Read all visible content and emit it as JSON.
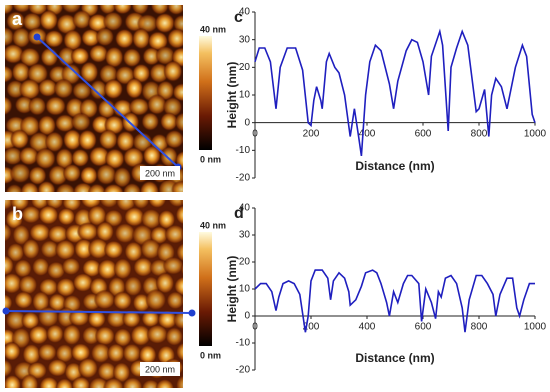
{
  "images": [
    {
      "label": "a",
      "scale_bar": "200 nm",
      "colorbar_max": "40 nm",
      "colorbar_min": "0 nm"
    },
    {
      "label": "b",
      "scale_bar": "200 nm",
      "colorbar_max": "40 nm",
      "colorbar_min": "0 nm"
    }
  ],
  "chart_data": [
    {
      "type": "line",
      "panel": "c",
      "x_label": "Distance (nm)",
      "y_label": "Height (nm)",
      "xlim": [
        0,
        1000
      ],
      "xticks": [
        0,
        200,
        400,
        600,
        800,
        1000
      ],
      "ylim": [
        -20,
        40
      ],
      "yticks": [
        -20,
        -10,
        0,
        10,
        20,
        30,
        40
      ],
      "series": [
        {
          "color": "#1f1fbf",
          "x": [
            0,
            15,
            35,
            55,
            75,
            90,
            115,
            145,
            170,
            190,
            200,
            210,
            220,
            235,
            240,
            255,
            265,
            285,
            300,
            320,
            340,
            355,
            370,
            380,
            395,
            410,
            430,
            450,
            480,
            495,
            510,
            540,
            560,
            580,
            600,
            620,
            630,
            660,
            670,
            690,
            700,
            720,
            740,
            760,
            790,
            800,
            820,
            835,
            845,
            860,
            880,
            900,
            910,
            930,
            955,
            970,
            990,
            1000
          ],
          "values": [
            22,
            27,
            27,
            22,
            5,
            20,
            27,
            27,
            19,
            0,
            -1,
            8,
            13,
            8,
            5,
            22,
            25,
            20,
            18,
            10,
            -5,
            5,
            -5,
            -12,
            10,
            22,
            28,
            26,
            14,
            5,
            15,
            26,
            30,
            29,
            22,
            10,
            24,
            33,
            28,
            -3,
            20,
            27,
            33,
            28,
            4,
            5,
            12,
            -5,
            10,
            16,
            13,
            5,
            10,
            20,
            28,
            24,
            3,
            0
          ]
        }
      ]
    },
    {
      "type": "line",
      "panel": "d",
      "x_label": "Distance (nm)",
      "y_label": "Height (nm)",
      "xlim": [
        0,
        1000
      ],
      "xticks": [
        0,
        200,
        400,
        600,
        800,
        1000
      ],
      "ylim": [
        -20,
        40
      ],
      "yticks": [
        -20,
        -10,
        0,
        10,
        20,
        30,
        40
      ],
      "series": [
        {
          "color": "#1f1fbf",
          "x": [
            0,
            20,
            40,
            60,
            75,
            85,
            100,
            120,
            140,
            160,
            180,
            190,
            200,
            215,
            240,
            260,
            270,
            280,
            300,
            320,
            335,
            340,
            360,
            380,
            395,
            420,
            435,
            450,
            470,
            480,
            495,
            510,
            530,
            545,
            560,
            585,
            595,
            610,
            630,
            645,
            655,
            665,
            680,
            700,
            720,
            740,
            750,
            765,
            790,
            810,
            830,
            850,
            860,
            875,
            900,
            920,
            935,
            945,
            960,
            980,
            1000
          ],
          "values": [
            10,
            12,
            12,
            9,
            2,
            7,
            12,
            13,
            12,
            8,
            -6,
            0,
            13,
            17,
            17,
            14,
            6,
            13,
            16,
            14,
            9,
            4,
            6,
            11,
            16,
            17,
            16,
            12,
            5,
            0,
            9,
            5,
            12,
            15,
            15,
            12,
            -2,
            10,
            5,
            -1,
            9,
            7,
            14,
            15,
            12,
            3,
            -6,
            6,
            15,
            15,
            12,
            8,
            0,
            8,
            14,
            14,
            3,
            0,
            6,
            12,
            12
          ]
        }
      ]
    }
  ]
}
